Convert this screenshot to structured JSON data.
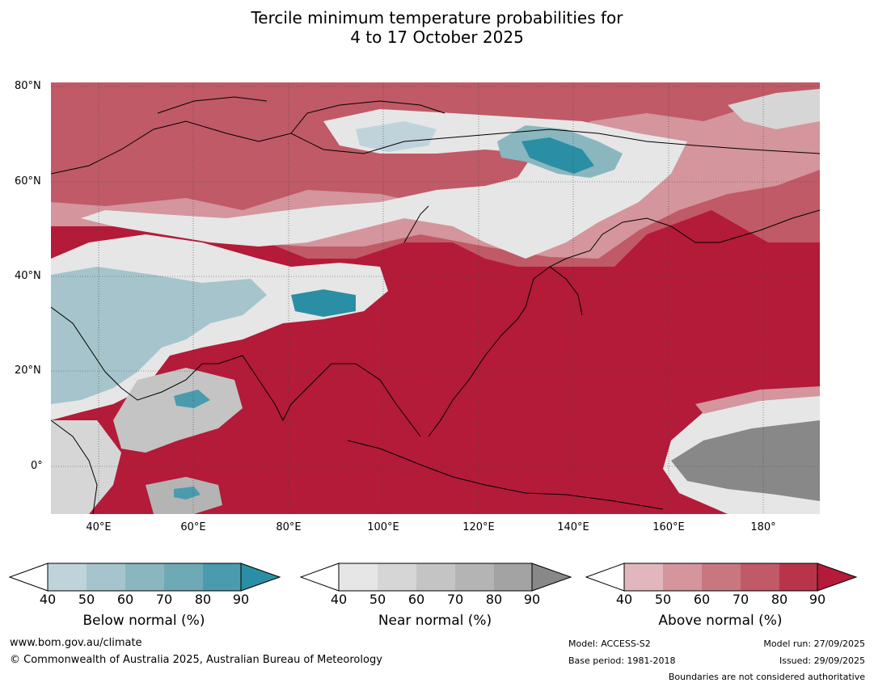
{
  "title": {
    "line1": "Tercile minimum temperature probabilities for",
    "line2": "4 to 17 October 2025"
  },
  "map": {
    "lat_ticks": [
      "80°N",
      "60°N",
      "40°N",
      "20°N",
      "0°"
    ],
    "lon_ticks": [
      "40°E",
      "60°E",
      "80°E",
      "100°E",
      "120°E",
      "140°E",
      "160°E",
      "180°"
    ],
    "lat_range": [
      -10,
      80
    ],
    "lon_range": [
      30,
      192
    ]
  },
  "colorbars": [
    {
      "title": "Below normal (%)",
      "ticks": [
        "40",
        "50",
        "60",
        "70",
        "80",
        "90"
      ],
      "colors": [
        "#bfd3da",
        "#a5c4cb",
        "#8ab6bf",
        "#6eaab6",
        "#4a9bae",
        "#2a8ea4"
      ]
    },
    {
      "title": "Near normal (%)",
      "ticks": [
        "40",
        "50",
        "60",
        "70",
        "80",
        "90"
      ],
      "colors": [
        "#e6e6e6",
        "#d6d6d6",
        "#c4c4c4",
        "#b4b4b4",
        "#a3a3a3",
        "#888888"
      ]
    },
    {
      "title": "Above normal (%)",
      "ticks": [
        "40",
        "50",
        "60",
        "70",
        "80",
        "90"
      ],
      "colors": [
        "#e0b7bd",
        "#d4959d",
        "#c9777f",
        "#c05a66",
        "#b83549",
        "#b31b38"
      ]
    }
  ],
  "footer": {
    "website": "www.bom.gov.au/climate",
    "copyright": "© Commonwealth of Australia 2025, Australian Bureau of Meteorology",
    "model": "Model: ACCESS-S2",
    "base_period": "Base period: 1981-2018",
    "model_run": "Model run: 27/09/2025",
    "issued": "Issued: 29/09/2025",
    "disclaimer": "Boundaries are not considered authoritative"
  }
}
